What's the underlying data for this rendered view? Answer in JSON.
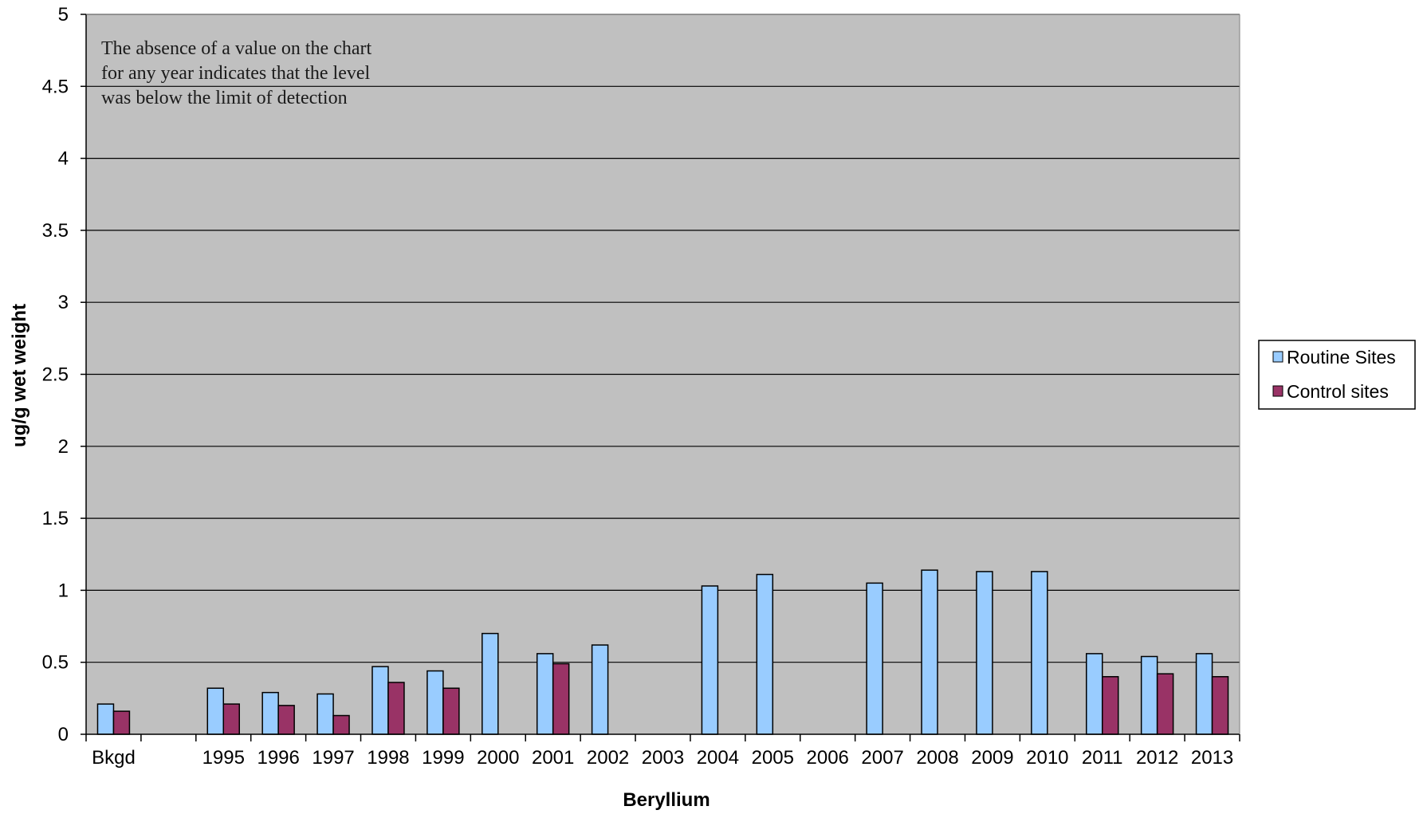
{
  "chart_data": {
    "type": "bar",
    "xlabel": "Beryllium",
    "ylabel": "ug/g wet weight",
    "ylim": [
      0,
      5
    ],
    "ytick_step": 0.5,
    "yticks": [
      "0",
      "0.5",
      "1",
      "1.5",
      "2",
      "2.5",
      "3",
      "3.5",
      "4",
      "4.5",
      "5"
    ],
    "grid": true,
    "legend_position": "right",
    "annotation": [
      "The absence of a value on the chart",
      "for any year indicates that the level",
      "was below the limit of detection"
    ],
    "categories": [
      "Bkgd",
      "",
      "1995",
      "1996",
      "1997",
      "1998",
      "1999",
      "2000",
      "2001",
      "2002",
      "2003",
      "2004",
      "2005",
      "2006",
      "2007",
      "2008",
      "2009",
      "2010",
      "2011",
      "2012",
      "2013"
    ],
    "series": [
      {
        "name": "Routine Sites",
        "color": "#99ccff",
        "values": [
          0.21,
          null,
          0.32,
          0.29,
          0.28,
          0.47,
          0.44,
          0.7,
          0.56,
          0.62,
          null,
          1.03,
          1.11,
          null,
          1.05,
          1.14,
          1.13,
          1.13,
          0.56,
          0.54,
          0.56
        ]
      },
      {
        "name": "Control sites",
        "color": "#993366",
        "values": [
          0.16,
          null,
          0.21,
          0.2,
          0.13,
          0.36,
          0.32,
          null,
          0.49,
          null,
          null,
          null,
          null,
          null,
          null,
          null,
          null,
          null,
          0.4,
          0.42,
          0.4
        ]
      }
    ]
  },
  "colors": {
    "plot_background": "#c0c0c0",
    "gridline": "#000000"
  }
}
